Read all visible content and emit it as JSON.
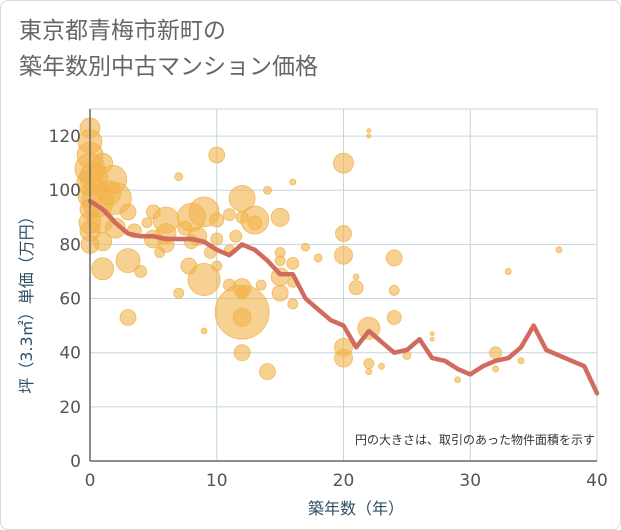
{
  "header": {
    "title_line1": "東京都青梅市新町の",
    "title_line2": "築年数別中古マンション価格"
  },
  "note": "円の大きさは、取引のあった物件面積を示す",
  "chart_data": {
    "type": "scatter",
    "xlabel": "築年数（年）",
    "ylabel": "坪（3.3㎡）単価（万円）",
    "xlim": [
      0,
      40
    ],
    "ylim": [
      0,
      130
    ],
    "xticks": [
      0,
      10,
      20,
      30,
      40
    ],
    "yticks": [
      0,
      20,
      40,
      60,
      80,
      100,
      120
    ],
    "grid": true,
    "colors": {
      "bubble": "#f2b24a",
      "line": "#d06b5e",
      "grid": "#c5d5e0",
      "axis": "#666666"
    },
    "bubbles": [
      {
        "x": 0,
        "y": 123,
        "s": 10
      },
      {
        "x": 0,
        "y": 118,
        "s": 12
      },
      {
        "x": 0,
        "y": 113,
        "s": 13
      },
      {
        "x": 0,
        "y": 108,
        "s": 15
      },
      {
        "x": 0,
        "y": 103,
        "s": 13
      },
      {
        "x": 0,
        "y": 98,
        "s": 12
      },
      {
        "x": 0,
        "y": 93,
        "s": 10
      },
      {
        "x": 0,
        "y": 88,
        "s": 11
      },
      {
        "x": 0,
        "y": 85,
        "s": 10
      },
      {
        "x": 0,
        "y": 80,
        "s": 9
      },
      {
        "x": 0.3,
        "y": 105,
        "s": 14
      },
      {
        "x": 0.6,
        "y": 96,
        "s": 16
      },
      {
        "x": 0.8,
        "y": 89,
        "s": 13
      },
      {
        "x": 1,
        "y": 110,
        "s": 10
      },
      {
        "x": 1,
        "y": 81,
        "s": 9
      },
      {
        "x": 1,
        "y": 71,
        "s": 11
      },
      {
        "x": 1.5,
        "y": 99,
        "s": 12
      },
      {
        "x": 1.8,
        "y": 104,
        "s": 14
      },
      {
        "x": 2,
        "y": 97,
        "s": 16
      },
      {
        "x": 2,
        "y": 86,
        "s": 10
      },
      {
        "x": 3,
        "y": 92,
        "s": 8
      },
      {
        "x": 3,
        "y": 74,
        "s": 12
      },
      {
        "x": 3,
        "y": 53,
        "s": 8
      },
      {
        "x": 3.5,
        "y": 85,
        "s": 7
      },
      {
        "x": 4,
        "y": 70,
        "s": 6
      },
      {
        "x": 4.5,
        "y": 88,
        "s": 5
      },
      {
        "x": 5,
        "y": 92,
        "s": 7
      },
      {
        "x": 5,
        "y": 82,
        "s": 9
      },
      {
        "x": 5.5,
        "y": 77,
        "s": 5
      },
      {
        "x": 6,
        "y": 89,
        "s": 13
      },
      {
        "x": 6,
        "y": 84,
        "s": 10
      },
      {
        "x": 6,
        "y": 80,
        "s": 8
      },
      {
        "x": 7,
        "y": 105,
        "s": 4
      },
      {
        "x": 7,
        "y": 62,
        "s": 5
      },
      {
        "x": 7.5,
        "y": 86,
        "s": 7
      },
      {
        "x": 7.8,
        "y": 72,
        "s": 8
      },
      {
        "x": 8,
        "y": 90,
        "s": 14
      },
      {
        "x": 8,
        "y": 81,
        "s": 7
      },
      {
        "x": 8.5,
        "y": 83,
        "s": 9
      },
      {
        "x": 9,
        "y": 92,
        "s": 15
      },
      {
        "x": 9,
        "y": 67,
        "s": 16
      },
      {
        "x": 9,
        "y": 48,
        "s": 3
      },
      {
        "x": 9.5,
        "y": 77,
        "s": 6
      },
      {
        "x": 10,
        "y": 113,
        "s": 8
      },
      {
        "x": 10,
        "y": 89,
        "s": 7
      },
      {
        "x": 10,
        "y": 82,
        "s": 6
      },
      {
        "x": 10,
        "y": 72,
        "s": 5
      },
      {
        "x": 11,
        "y": 91,
        "s": 6
      },
      {
        "x": 11,
        "y": 78,
        "s": 5
      },
      {
        "x": 11,
        "y": 65,
        "s": 6
      },
      {
        "x": 11.5,
        "y": 83,
        "s": 6
      },
      {
        "x": 12,
        "y": 97,
        "s": 13
      },
      {
        "x": 12,
        "y": 90,
        "s": 6
      },
      {
        "x": 12,
        "y": 64,
        "s": 9
      },
      {
        "x": 12,
        "y": 62,
        "s": 6
      },
      {
        "x": 12,
        "y": 55,
        "s": 27
      },
      {
        "x": 12,
        "y": 53,
        "s": 9
      },
      {
        "x": 12,
        "y": 40,
        "s": 8
      },
      {
        "x": 13,
        "y": 89,
        "s": 14
      },
      {
        "x": 13,
        "y": 88,
        "s": 7
      },
      {
        "x": 13.5,
        "y": 65,
        "s": 5
      },
      {
        "x": 14,
        "y": 100,
        "s": 4
      },
      {
        "x": 14,
        "y": 33,
        "s": 8
      },
      {
        "x": 15,
        "y": 90,
        "s": 9
      },
      {
        "x": 15,
        "y": 77,
        "s": 5
      },
      {
        "x": 15,
        "y": 74,
        "s": 5
      },
      {
        "x": 15,
        "y": 68,
        "s": 9
      },
      {
        "x": 15,
        "y": 62,
        "s": 8
      },
      {
        "x": 16,
        "y": 103,
        "s": 3
      },
      {
        "x": 16,
        "y": 73,
        "s": 6
      },
      {
        "x": 16,
        "y": 66,
        "s": 5
      },
      {
        "x": 16,
        "y": 58,
        "s": 5
      },
      {
        "x": 17,
        "y": 79,
        "s": 4
      },
      {
        "x": 18,
        "y": 75,
        "s": 4
      },
      {
        "x": 20,
        "y": 110,
        "s": 10
      },
      {
        "x": 20,
        "y": 84,
        "s": 8
      },
      {
        "x": 20,
        "y": 76,
        "s": 9
      },
      {
        "x": 20,
        "y": 42,
        "s": 9
      },
      {
        "x": 20,
        "y": 38,
        "s": 9
      },
      {
        "x": 21,
        "y": 68,
        "s": 3
      },
      {
        "x": 21,
        "y": 64,
        "s": 7
      },
      {
        "x": 22,
        "y": 122,
        "s": 2
      },
      {
        "x": 22,
        "y": 120,
        "s": 2
      },
      {
        "x": 22,
        "y": 49,
        "s": 11
      },
      {
        "x": 22,
        "y": 36,
        "s": 5
      },
      {
        "x": 22,
        "y": 33,
        "s": 3
      },
      {
        "x": 23,
        "y": 35,
        "s": 3
      },
      {
        "x": 24,
        "y": 75,
        "s": 8
      },
      {
        "x": 24,
        "y": 63,
        "s": 5
      },
      {
        "x": 24,
        "y": 53,
        "s": 7
      },
      {
        "x": 25,
        "y": 39,
        "s": 4
      },
      {
        "x": 27,
        "y": 47,
        "s": 2
      },
      {
        "x": 27,
        "y": 45,
        "s": 2
      },
      {
        "x": 29,
        "y": 30,
        "s": 3
      },
      {
        "x": 32,
        "y": 40,
        "s": 6
      },
      {
        "x": 32,
        "y": 34,
        "s": 3
      },
      {
        "x": 33,
        "y": 70,
        "s": 3
      },
      {
        "x": 34,
        "y": 37,
        "s": 3
      },
      {
        "x": 37,
        "y": 78,
        "s": 3
      }
    ],
    "series": [
      {
        "name": "",
        "x": [
          0,
          1,
          2,
          3,
          4,
          5,
          6,
          7,
          8,
          9,
          10,
          11,
          12,
          13,
          14,
          15,
          16,
          17,
          18,
          19,
          20,
          21,
          22,
          23,
          24,
          25,
          26,
          27,
          28,
          29,
          30,
          31,
          32,
          33,
          34,
          35,
          36,
          37,
          38,
          39,
          40
        ],
        "y": [
          96,
          93,
          88,
          84,
          83,
          83,
          82,
          82,
          82,
          81,
          78,
          76,
          80,
          78,
          74,
          69,
          69,
          60,
          56,
          52,
          50,
          42,
          48,
          44,
          40,
          41,
          45,
          38,
          37,
          34,
          32,
          35,
          37,
          38,
          42,
          50,
          41,
          39,
          37,
          35,
          25
        ]
      }
    ]
  }
}
